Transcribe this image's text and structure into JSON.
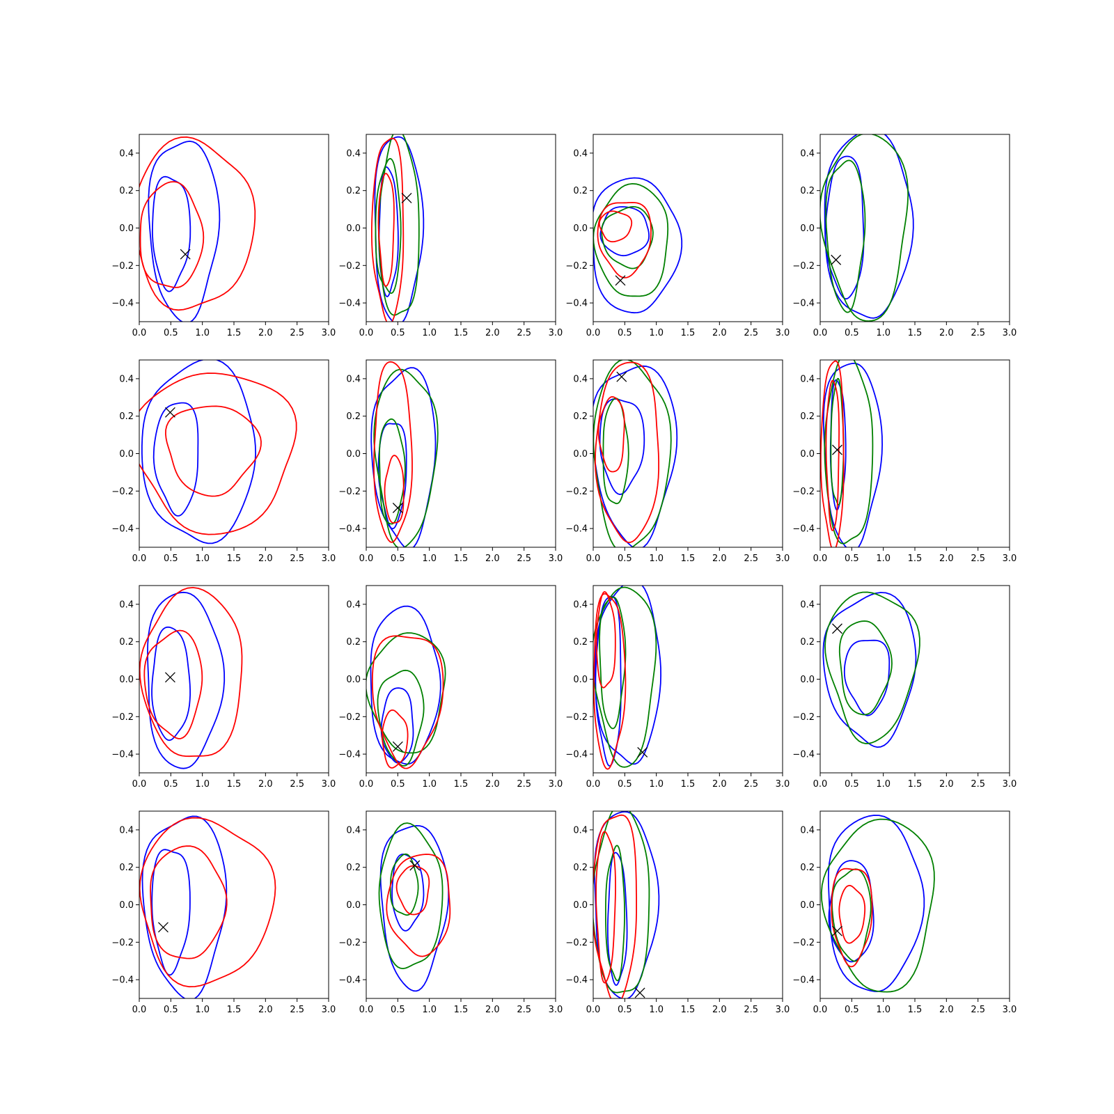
{
  "colors": {
    "blue": "#0000ff",
    "red": "#ff0000",
    "green": "#008000",
    "marker": "#000000"
  },
  "chart_data": {
    "type": "contour-grid",
    "rows": 4,
    "cols": 4,
    "xlim": [
      0,
      3
    ],
    "ylim": [
      -0.5,
      0.5
    ],
    "xticks": [
      "0.0",
      "0.5",
      "1.0",
      "1.5",
      "2.0",
      "2.5",
      "3.0"
    ],
    "yticks": [
      "−0.4",
      "−0.2",
      "0.0",
      "0.2",
      "0.4"
    ],
    "panels": [
      {
        "marker": [
          0.73,
          -0.14
        ],
        "contours": [
          {
            "color": "blue",
            "cx": 0.7,
            "cy": 0.0,
            "rx": 0.55,
            "ry": 0.48,
            "skew": 0.1
          },
          {
            "color": "blue",
            "cx": 0.5,
            "cy": -0.02,
            "rx": 0.3,
            "ry": 0.3,
            "skew": 0.15
          },
          {
            "color": "red",
            "cx": 0.85,
            "cy": 0.01,
            "rx": 0.95,
            "ry": 0.45,
            "skew": 0.2
          },
          {
            "color": "red",
            "cx": 0.5,
            "cy": -0.05,
            "rx": 0.5,
            "ry": 0.28,
            "skew": 0.2
          }
        ]
      },
      {
        "marker": [
          0.64,
          0.16
        ],
        "contours": [
          {
            "color": "blue",
            "cx": 0.5,
            "cy": 0.0,
            "rx": 0.38,
            "ry": 0.5,
            "skew": 0.05
          },
          {
            "color": "blue",
            "cx": 0.35,
            "cy": -0.02,
            "rx": 0.15,
            "ry": 0.34,
            "skew": 0.05
          },
          {
            "color": "green",
            "cx": 0.52,
            "cy": 0.0,
            "rx": 0.32,
            "ry": 0.49,
            "skew": 0.05
          },
          {
            "color": "green",
            "cx": 0.35,
            "cy": 0.0,
            "rx": 0.2,
            "ry": 0.35,
            "skew": 0.05
          },
          {
            "color": "red",
            "cx": 0.35,
            "cy": 0.0,
            "rx": 0.25,
            "ry": 0.49,
            "skew": 0.05
          },
          {
            "color": "red",
            "cx": 0.32,
            "cy": 0.0,
            "rx": 0.12,
            "ry": 0.3,
            "skew": 0.05
          }
        ]
      },
      {
        "marker": [
          0.43,
          -0.28
        ],
        "contours": [
          {
            "color": "blue",
            "cx": 0.65,
            "cy": -0.1,
            "rx": 0.7,
            "ry": 0.36,
            "skew": 0.3
          },
          {
            "color": "blue",
            "cx": 0.5,
            "cy": -0.02,
            "rx": 0.38,
            "ry": 0.13,
            "skew": 0.2
          },
          {
            "color": "green",
            "cx": 0.62,
            "cy": -0.08,
            "rx": 0.58,
            "ry": 0.3,
            "skew": 0.3
          },
          {
            "color": "green",
            "cx": 0.55,
            "cy": -0.05,
            "rx": 0.4,
            "ry": 0.16,
            "skew": 0.2
          },
          {
            "color": "red",
            "cx": 0.5,
            "cy": -0.05,
            "rx": 0.42,
            "ry": 0.2,
            "skew": 0.2
          },
          {
            "color": "red",
            "cx": 0.35,
            "cy": 0.01,
            "rx": 0.25,
            "ry": 0.08,
            "skew": 0.1
          }
        ]
      },
      {
        "marker": [
          0.25,
          -0.17
        ],
        "contours": [
          {
            "color": "blue",
            "cx": 0.75,
            "cy": 0.0,
            "rx": 0.7,
            "ry": 0.5,
            "skew": 0.4
          },
          {
            "color": "blue",
            "cx": 0.4,
            "cy": 0.0,
            "rx": 0.3,
            "ry": 0.38,
            "skew": 0.2
          },
          {
            "color": "green",
            "cx": 0.72,
            "cy": 0.0,
            "rx": 0.66,
            "ry": 0.5,
            "skew": 0.4
          },
          {
            "color": "green",
            "cx": 0.4,
            "cy": -0.03,
            "rx": 0.3,
            "ry": 0.4,
            "skew": 0.2
          }
        ]
      },
      {
        "marker": [
          0.49,
          0.22
        ],
        "contours": [
          {
            "color": "blue",
            "cx": 0.95,
            "cy": 0.0,
            "rx": 0.9,
            "ry": 0.48,
            "skew": 0.25
          },
          {
            "color": "blue",
            "cx": 0.6,
            "cy": -0.02,
            "rx": 0.35,
            "ry": 0.3,
            "skew": 0.25
          },
          {
            "color": "red",
            "cx": 1.2,
            "cy": 0.01,
            "rx": 1.25,
            "ry": 0.43,
            "skew": 0.2
          },
          {
            "color": "red",
            "cx": 1.15,
            "cy": 0.02,
            "rx": 0.72,
            "ry": 0.24,
            "skew": 0.3
          }
        ]
      },
      {
        "marker": [
          0.5,
          -0.29
        ],
        "contours": [
          {
            "color": "blue",
            "cx": 0.6,
            "cy": -0.02,
            "rx": 0.5,
            "ry": 0.47,
            "skew": 0.3
          },
          {
            "color": "blue",
            "cx": 0.42,
            "cy": -0.1,
            "rx": 0.22,
            "ry": 0.28,
            "skew": 0.2
          },
          {
            "color": "green",
            "cx": 0.62,
            "cy": -0.02,
            "rx": 0.48,
            "ry": 0.47,
            "skew": 0.3
          },
          {
            "color": "green",
            "cx": 0.4,
            "cy": -0.1,
            "rx": 0.2,
            "ry": 0.28,
            "skew": 0.2
          },
          {
            "color": "red",
            "cx": 0.42,
            "cy": 0.0,
            "rx": 0.3,
            "ry": 0.48,
            "skew": 0.2
          },
          {
            "color": "red",
            "cx": 0.45,
            "cy": -0.2,
            "rx": 0.15,
            "ry": 0.18,
            "skew": 0.1
          }
        ]
      },
      {
        "marker": [
          0.45,
          0.41
        ],
        "contours": [
          {
            "color": "blue",
            "cx": 0.65,
            "cy": 0.0,
            "rx": 0.65,
            "ry": 0.48,
            "skew": 0.3
          },
          {
            "color": "blue",
            "cx": 0.45,
            "cy": 0.05,
            "rx": 0.35,
            "ry": 0.25,
            "skew": 0.2
          },
          {
            "color": "green",
            "cx": 0.6,
            "cy": -0.02,
            "rx": 0.6,
            "ry": 0.5,
            "skew": 0.3
          },
          {
            "color": "green",
            "cx": 0.35,
            "cy": 0.0,
            "rx": 0.2,
            "ry": 0.28,
            "skew": 0.2
          },
          {
            "color": "red",
            "cx": 0.55,
            "cy": 0.0,
            "rx": 0.5,
            "ry": 0.48,
            "skew": 0.3
          },
          {
            "color": "red",
            "cx": 0.3,
            "cy": 0.1,
            "rx": 0.2,
            "ry": 0.2,
            "skew": 0.2
          }
        ]
      },
      {
        "marker": [
          0.27,
          0.02
        ],
        "contours": [
          {
            "color": "blue",
            "cx": 0.5,
            "cy": 0.0,
            "rx": 0.45,
            "ry": 0.5,
            "skew": 0.2
          },
          {
            "color": "blue",
            "cx": 0.28,
            "cy": 0.05,
            "rx": 0.12,
            "ry": 0.34,
            "skew": 0.05
          },
          {
            "color": "green",
            "cx": 0.45,
            "cy": 0.0,
            "rx": 0.38,
            "ry": 0.5,
            "skew": 0.2
          },
          {
            "color": "green",
            "cx": 0.27,
            "cy": 0.05,
            "rx": 0.1,
            "ry": 0.33,
            "skew": 0.05
          },
          {
            "color": "red",
            "cx": 0.2,
            "cy": 0.0,
            "rx": 0.18,
            "ry": 0.5,
            "skew": 0.05
          },
          {
            "color": "red",
            "cx": 0.2,
            "cy": 0.0,
            "rx": 0.1,
            "ry": 0.4,
            "skew": 0.05
          }
        ]
      },
      {
        "marker": [
          0.49,
          0.01
        ],
        "contours": [
          {
            "color": "blue",
            "cx": 0.7,
            "cy": -0.01,
            "rx": 0.6,
            "ry": 0.47,
            "skew": 0.2
          },
          {
            "color": "blue",
            "cx": 0.5,
            "cy": -0.03,
            "rx": 0.3,
            "ry": 0.3,
            "skew": 0.2
          },
          {
            "color": "red",
            "cx": 0.85,
            "cy": 0.01,
            "rx": 0.8,
            "ry": 0.45,
            "skew": 0.3
          },
          {
            "color": "red",
            "cx": 0.55,
            "cy": -0.03,
            "rx": 0.45,
            "ry": 0.28,
            "skew": 0.3
          }
        ]
      },
      {
        "marker": [
          0.5,
          -0.36
        ],
        "contours": [
          {
            "color": "blue",
            "cx": 0.6,
            "cy": -0.05,
            "rx": 0.55,
            "ry": 0.42,
            "skew": 0.4
          },
          {
            "color": "blue",
            "cx": 0.5,
            "cy": -0.25,
            "rx": 0.25,
            "ry": 0.2,
            "skew": 0.2
          },
          {
            "color": "green",
            "cx": 0.65,
            "cy": -0.08,
            "rx": 0.6,
            "ry": 0.32,
            "skew": 0.4
          },
          {
            "color": "green",
            "cx": 0.55,
            "cy": -0.2,
            "rx": 0.35,
            "ry": 0.25,
            "skew": 0.3
          },
          {
            "color": "red",
            "cx": 0.65,
            "cy": -0.1,
            "rx": 0.55,
            "ry": 0.35,
            "skew": 0.4
          },
          {
            "color": "red",
            "cx": 0.45,
            "cy": -0.32,
            "rx": 0.2,
            "ry": 0.15,
            "skew": 0.1
          }
        ]
      },
      {
        "marker": [
          0.78,
          -0.39
        ],
        "contours": [
          {
            "color": "blue",
            "cx": 0.55,
            "cy": 0.02,
            "rx": 0.52,
            "ry": 0.48,
            "skew": 0.3
          },
          {
            "color": "blue",
            "cx": 0.25,
            "cy": 0.0,
            "rx": 0.2,
            "ry": 0.45,
            "skew": 0.1
          },
          {
            "color": "green",
            "cx": 0.5,
            "cy": 0.02,
            "rx": 0.48,
            "ry": 0.48,
            "skew": 0.3
          },
          {
            "color": "green",
            "cx": 0.3,
            "cy": 0.1,
            "rx": 0.2,
            "ry": 0.35,
            "skew": 0.1
          },
          {
            "color": "red",
            "cx": 0.25,
            "cy": 0.0,
            "rx": 0.25,
            "ry": 0.46,
            "skew": 0.1
          },
          {
            "color": "red",
            "cx": 0.2,
            "cy": 0.2,
            "rx": 0.15,
            "ry": 0.25,
            "skew": 0.05
          }
        ]
      },
      {
        "marker": [
          0.27,
          0.27
        ],
        "contours": [
          {
            "color": "blue",
            "cx": 0.8,
            "cy": 0.05,
            "rx": 0.72,
            "ry": 0.4,
            "skew": 0.4
          },
          {
            "color": "blue",
            "cx": 0.75,
            "cy": 0.02,
            "rx": 0.35,
            "ry": 0.2,
            "skew": 0.3
          },
          {
            "color": "green",
            "cx": 0.82,
            "cy": 0.07,
            "rx": 0.7,
            "ry": 0.4,
            "skew": 0.4
          },
          {
            "color": "green",
            "cx": 0.7,
            "cy": 0.06,
            "rx": 0.4,
            "ry": 0.25,
            "skew": 0.3
          }
        ]
      },
      {
        "marker": [
          0.38,
          -0.12
        ],
        "contours": [
          {
            "color": "blue",
            "cx": 0.72,
            "cy": 0.0,
            "rx": 0.65,
            "ry": 0.48,
            "skew": 0.2
          },
          {
            "color": "blue",
            "cx": 0.5,
            "cy": -0.02,
            "rx": 0.3,
            "ry": 0.33,
            "skew": 0.2
          },
          {
            "color": "red",
            "cx": 1.05,
            "cy": 0.01,
            "rx": 1.05,
            "ry": 0.44,
            "skew": 0.2
          },
          {
            "color": "red",
            "cx": 0.75,
            "cy": 0.0,
            "rx": 0.6,
            "ry": 0.3,
            "skew": 0.3
          }
        ]
      },
      {
        "marker": [
          0.77,
          0.21
        ],
        "contours": [
          {
            "color": "blue",
            "cx": 0.75,
            "cy": 0.0,
            "rx": 0.52,
            "ry": 0.44,
            "skew": 0.2
          },
          {
            "color": "blue",
            "cx": 0.65,
            "cy": 0.07,
            "rx": 0.25,
            "ry": 0.2,
            "skew": 0.1
          },
          {
            "color": "green",
            "cx": 0.7,
            "cy": 0.03,
            "rx": 0.5,
            "ry": 0.38,
            "skew": 0.2
          },
          {
            "color": "green",
            "cx": 0.6,
            "cy": 0.1,
            "rx": 0.22,
            "ry": 0.16,
            "skew": 0.1
          },
          {
            "color": "red",
            "cx": 0.85,
            "cy": 0.0,
            "rx": 0.5,
            "ry": 0.27,
            "skew": 0.2
          },
          {
            "color": "red",
            "cx": 0.75,
            "cy": 0.08,
            "rx": 0.25,
            "ry": 0.13,
            "skew": 0.1
          }
        ]
      },
      {
        "marker": [
          0.74,
          -0.47
        ],
        "contours": [
          {
            "color": "blue",
            "cx": 0.5,
            "cy": 0.0,
            "rx": 0.5,
            "ry": 0.5,
            "skew": 0.2
          },
          {
            "color": "blue",
            "cx": 0.38,
            "cy": -0.08,
            "rx": 0.15,
            "ry": 0.35,
            "skew": 0.05
          },
          {
            "color": "green",
            "cx": 0.45,
            "cy": 0.0,
            "rx": 0.45,
            "ry": 0.5,
            "skew": 0.2
          },
          {
            "color": "green",
            "cx": 0.35,
            "cy": -0.05,
            "rx": 0.15,
            "ry": 0.35,
            "skew": 0.05
          },
          {
            "color": "red",
            "cx": 0.35,
            "cy": 0.0,
            "rx": 0.35,
            "ry": 0.5,
            "skew": 0.1
          },
          {
            "color": "red",
            "cx": 0.2,
            "cy": 0.0,
            "rx": 0.15,
            "ry": 0.4,
            "skew": 0.05
          }
        ]
      },
      {
        "marker": [
          0.27,
          -0.14
        ],
        "contours": [
          {
            "color": "blue",
            "cx": 0.85,
            "cy": -0.01,
            "rx": 0.75,
            "ry": 0.47,
            "skew": 0.4
          },
          {
            "color": "blue",
            "cx": 0.5,
            "cy": -0.04,
            "rx": 0.35,
            "ry": 0.27,
            "skew": 0.2
          },
          {
            "color": "green",
            "cx": 0.95,
            "cy": -0.02,
            "rx": 0.85,
            "ry": 0.46,
            "skew": 0.5
          },
          {
            "color": "green",
            "cx": 0.5,
            "cy": -0.05,
            "rx": 0.3,
            "ry": 0.24,
            "skew": 0.2
          },
          {
            "color": "red",
            "cx": 0.5,
            "cy": -0.05,
            "rx": 0.32,
            "ry": 0.26,
            "skew": 0.2
          },
          {
            "color": "red",
            "cx": 0.5,
            "cy": -0.05,
            "rx": 0.2,
            "ry": 0.15,
            "skew": 0.1
          }
        ]
      }
    ]
  }
}
